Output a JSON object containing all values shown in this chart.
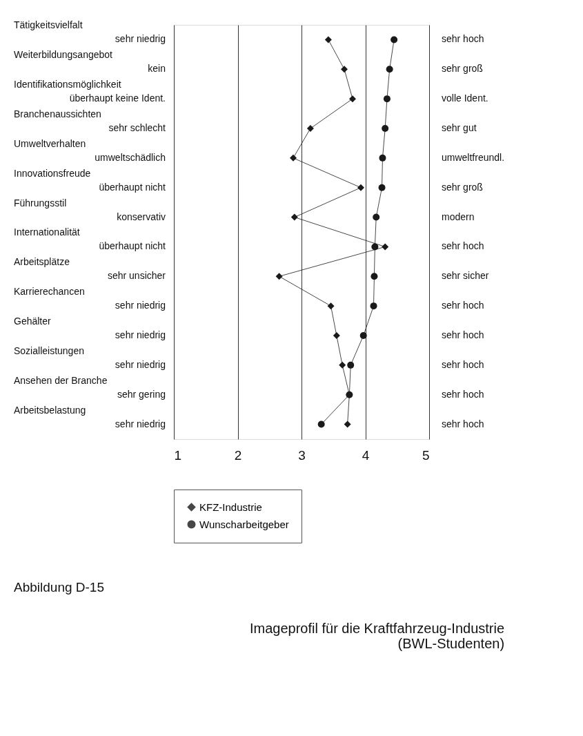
{
  "chart_data": {
    "type": "line",
    "orientation": "horizontal",
    "title": "Imageprofil für die Kraftfahrzeug-Industrie\n(BWL-Studenten)",
    "categories": [
      "Tätigkeitsvielfalt\nsehr niedrig",
      "Weiterbildungsangebot\nkein",
      "Identifikationsmöglichkeit\nüberhaupt keine Ident.",
      "Branchenaussichten\nsehr schlecht",
      "Umweltverhalten\numweltschädlich",
      "Innovationsfreude\nüberhaupt nicht",
      "Führungsstil\nkonservativ",
      "Internationalität\nüberhaupt nicht",
      "Arbeitsplätze\nsehr unsicher",
      "Karrierechancen\nsehr niedrig",
      "Gehälter\nsehr niedrig",
      "Sozialleistungen\nsehr niedrig",
      "Ansehen der Branche\nsehr gering",
      "Arbeitsbelastung\nsehr niedrig"
    ],
    "y2_categories": [
      "sehr hoch",
      "sehr groß",
      "volle Ident.",
      "sehr gut",
      "umweltfreundl.",
      "sehr groß",
      "modern",
      "sehr hoch",
      "sehr sicher",
      "sehr hoch",
      "sehr hoch",
      "sehr hoch",
      "sehr hoch",
      "sehr hoch"
    ],
    "series": [
      {
        "name": "KFZ-Industrie",
        "color": "#1a1a1a",
        "marker": "diamond",
        "values": [
          3.42,
          3.67,
          3.8,
          3.14,
          2.87,
          3.93,
          2.89,
          4.31,
          2.65,
          3.46,
          3.55,
          3.64,
          3.75,
          3.72
        ]
      },
      {
        "name": "Wunscharbeitgeber",
        "color": "#1a1a1a",
        "marker": "circle",
        "values": [
          4.45,
          4.38,
          4.34,
          4.31,
          4.27,
          4.26,
          4.17,
          4.15,
          4.14,
          4.13,
          3.97,
          3.77,
          3.75,
          3.31
        ]
      }
    ],
    "xlim": [
      1,
      5
    ],
    "xticks": [
      1,
      2,
      3,
      4,
      5
    ],
    "grid": "x",
    "legend": "bottom",
    "annotations": [
      "Abbildung D-15"
    ]
  }
}
